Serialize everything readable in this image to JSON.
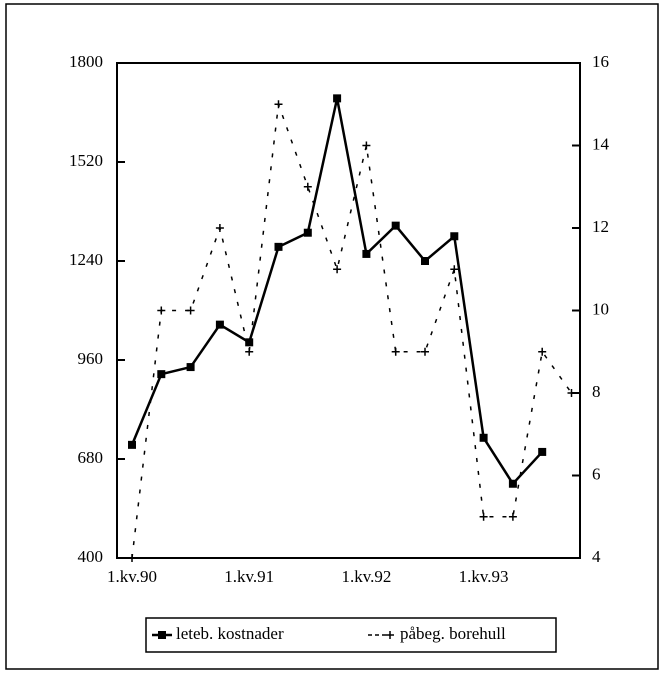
{
  "chart_data": {
    "type": "line",
    "categories": [
      "1.kv.90",
      null,
      null,
      null,
      "1.kv.91",
      null,
      null,
      null,
      "1.kv.92",
      null,
      null,
      null,
      "1.kv.93",
      null,
      null,
      null
    ],
    "series": [
      {
        "name": "leteb. kostnader",
        "color": "#000000",
        "values": [
          720,
          920,
          940,
          1060,
          1010,
          1280,
          1320,
          1700,
          1260,
          1340,
          1240,
          1310,
          740,
          610,
          700,
          null
        ]
      },
      {
        "name": "påbeg. borehull",
        "color": "#000000",
        "axis": "y2",
        "values": [
          4,
          10,
          10,
          12,
          9,
          15,
          13,
          11,
          14,
          9,
          9,
          11,
          5,
          5,
          9,
          8
        ]
      }
    ],
    "ylim": [
      400,
      1800
    ],
    "yticks": [
      400,
      680,
      960,
      1240,
      1520,
      1800
    ],
    "y2lim": [
      4,
      16
    ],
    "y2ticks": [
      4,
      6,
      8,
      10,
      12,
      14,
      16
    ],
    "legend": "bottom"
  }
}
